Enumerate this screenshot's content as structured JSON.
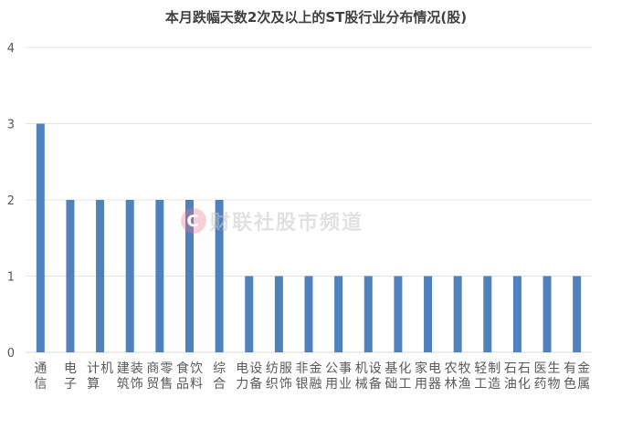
{
  "chart_data": {
    "type": "bar",
    "title": "本月跌幅天数2次及以上的ST股行业分布情况(股)",
    "categories": [
      "通信",
      "电子",
      "计算机",
      "建筑装饰",
      "商贸零售",
      "食品饮料",
      "综合",
      "电力设备",
      "纺织服饰",
      "非银金融",
      "公用事业",
      "机械设备",
      "基础化工",
      "家用电器",
      "农林牧渔",
      "轻工制造",
      "石油石化",
      "医药生物",
      "有色金属"
    ],
    "values": [
      3,
      2,
      2,
      2,
      2,
      2,
      2,
      1,
      1,
      1,
      1,
      1,
      1,
      1,
      1,
      1,
      1,
      1,
      1
    ],
    "y_ticks": [
      "0",
      "1",
      "2",
      "3",
      "4"
    ],
    "ylim": [
      0,
      4
    ],
    "xlabel": "",
    "ylabel": "",
    "grid": true,
    "legend": "none",
    "bar_color": "#4f81bd"
  },
  "watermark": {
    "logo": "C",
    "text": "财联社股市频道"
  }
}
